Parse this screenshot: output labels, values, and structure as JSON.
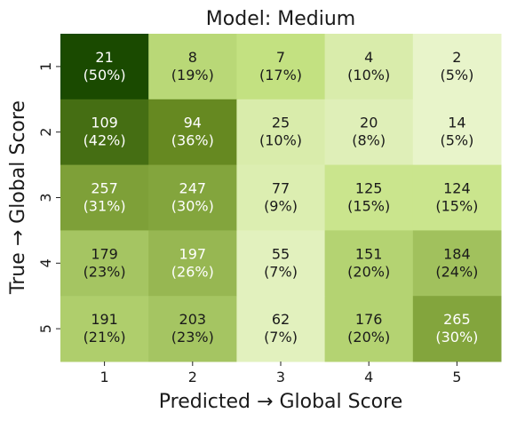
{
  "chart_data": {
    "type": "heatmap",
    "title": "Model: Medium",
    "xlabel": "Predicted → Global Score",
    "ylabel": "True → Global Score",
    "x_categories": [
      "1",
      "2",
      "3",
      "4",
      "5"
    ],
    "y_categories": [
      "1",
      "2",
      "3",
      "4",
      "5"
    ],
    "values": [
      [
        21,
        8,
        7,
        4,
        2
      ],
      [
        109,
        94,
        25,
        20,
        14
      ],
      [
        257,
        247,
        77,
        125,
        124
      ],
      [
        179,
        197,
        55,
        151,
        184
      ],
      [
        191,
        203,
        62,
        176,
        265
      ]
    ],
    "percent_labels": [
      [
        "(50%)",
        "(19%)",
        "(17%)",
        "(10%)",
        "(5%)"
      ],
      [
        "(42%)",
        "(36%)",
        "(10%)",
        "(8%)",
        "(5%)"
      ],
      [
        "(31%)",
        "(30%)",
        "(9%)",
        "(15%)",
        "(15%)"
      ],
      [
        "(23%)",
        "(26%)",
        "(7%)",
        "(20%)",
        "(24%)"
      ],
      [
        "(21%)",
        "(23%)",
        "(7%)",
        "(20%)",
        "(30%)"
      ]
    ],
    "row_normalized_percent": [
      [
        50,
        19,
        17,
        10,
        5
      ],
      [
        42,
        36,
        10,
        8,
        5
      ],
      [
        31,
        30,
        9,
        15,
        15
      ],
      [
        23,
        26,
        7,
        20,
        24
      ],
      [
        21,
        23,
        7,
        20,
        30
      ]
    ],
    "colormap": [
      "#f7fbe8",
      "#c5e384",
      "#6b8e23",
      "#1a4a00"
    ],
    "colorbar": false,
    "grid": false
  }
}
